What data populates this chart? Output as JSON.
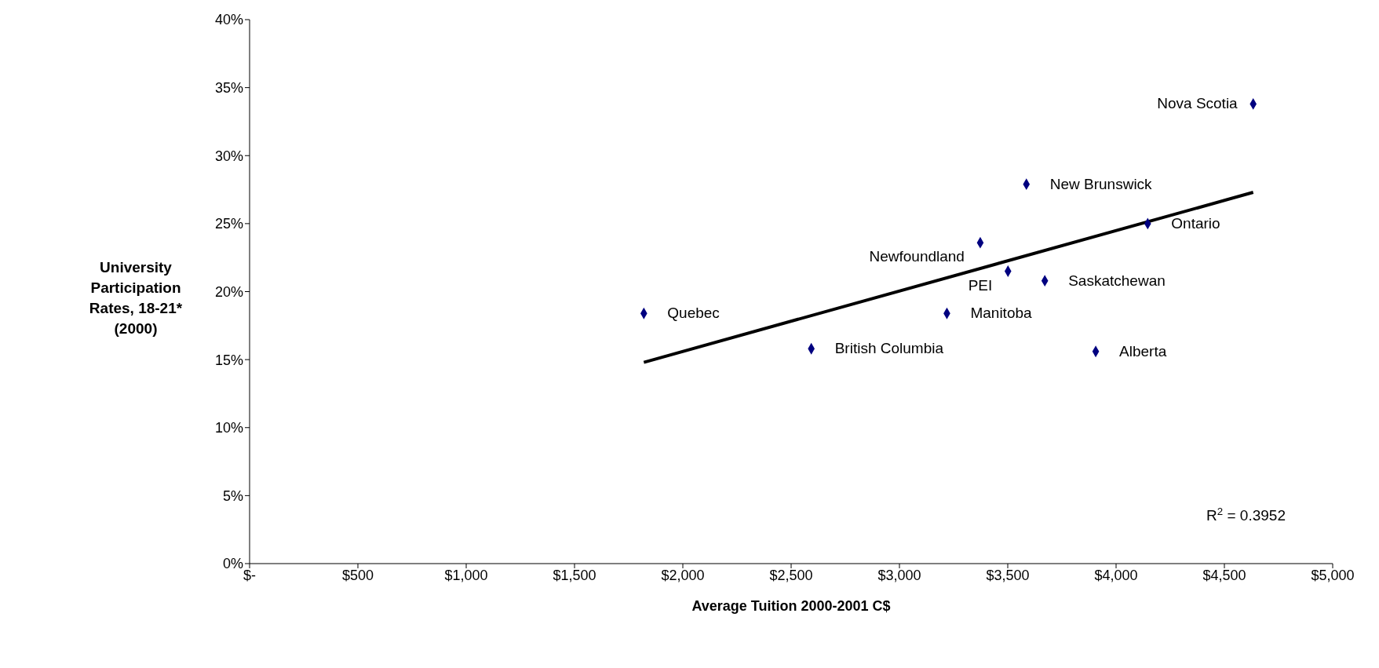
{
  "chart_data": {
    "type": "scatter",
    "xlabel": "Average Tuition 2000-2001 C$",
    "ylabel": "University Participation Rates, 18-21* (2000)",
    "series": [
      {
        "type": "scatter",
        "color": "#000080",
        "marker": "diamond",
        "x": [
          1820,
          2593,
          3219,
          3373,
          3501,
          3586,
          3671,
          3906,
          4146,
          4633
        ],
        "values": [
          18.4,
          15.8,
          18.4,
          23.6,
          21.5,
          27.9,
          20.8,
          15.6,
          25.0,
          33.8
        ]
      },
      {
        "type": "line",
        "color": "#000000",
        "marker": "none",
        "line_style": "solid",
        "x": [
          1820,
          4633
        ],
        "values": [
          14.8,
          27.3
        ]
      }
    ],
    "xlim": [
      0,
      5000
    ],
    "xticks": [
      {
        "value": 0,
        "label": "$-"
      },
      {
        "value": 500,
        "label": "$500"
      },
      {
        "value": 1000,
        "label": "$1,000"
      },
      {
        "value": 1500,
        "label": "$1,500"
      },
      {
        "value": 2000,
        "label": "$2,000"
      },
      {
        "value": 2500,
        "label": "$2,500"
      },
      {
        "value": 3000,
        "label": "$3,000"
      },
      {
        "value": 3500,
        "label": "$3,500"
      },
      {
        "value": 4000,
        "label": "$4,000"
      },
      {
        "value": 4500,
        "label": "$4,500"
      },
      {
        "value": 5000,
        "label": "$5,000"
      }
    ],
    "ylim": [
      0,
      40
    ],
    "yticks": [
      {
        "value": 0,
        "label": "0%"
      },
      {
        "value": 5,
        "label": "5%"
      },
      {
        "value": 10,
        "label": "10%"
      },
      {
        "value": 15,
        "label": "15%"
      },
      {
        "value": 20,
        "label": "20%"
      },
      {
        "value": 25,
        "label": "25%"
      },
      {
        "value": 30,
        "label": "30%"
      },
      {
        "value": 35,
        "label": "35%"
      },
      {
        "value": 40,
        "label": "40%"
      }
    ],
    "grid": false,
    "legend": false,
    "annotations": [
      {
        "text": "Quebec",
        "x": 1820,
        "y": 18.4
      },
      {
        "text": "British Columbia",
        "x": 2593,
        "y": 15.8
      },
      {
        "text": "Manitoba",
        "x": 3219,
        "y": 18.4
      },
      {
        "text": "Newfoundland",
        "x": 3373,
        "y": 23.6
      },
      {
        "text": "PEI",
        "x": 3501,
        "y": 21.5
      },
      {
        "text": "New Brunswick",
        "x": 3586,
        "y": 27.9
      },
      {
        "text": "Saskatchewan",
        "x": 3671,
        "y": 20.8
      },
      {
        "text": "Alberta",
        "x": 3906,
        "y": 15.6
      },
      {
        "text": "Ontario",
        "x": 4146,
        "y": 25.0
      },
      {
        "text": "Nova Scotia",
        "x": 4633,
        "y": 33.8
      },
      "R$^{2}$ = 0.3952"
    ]
  }
}
